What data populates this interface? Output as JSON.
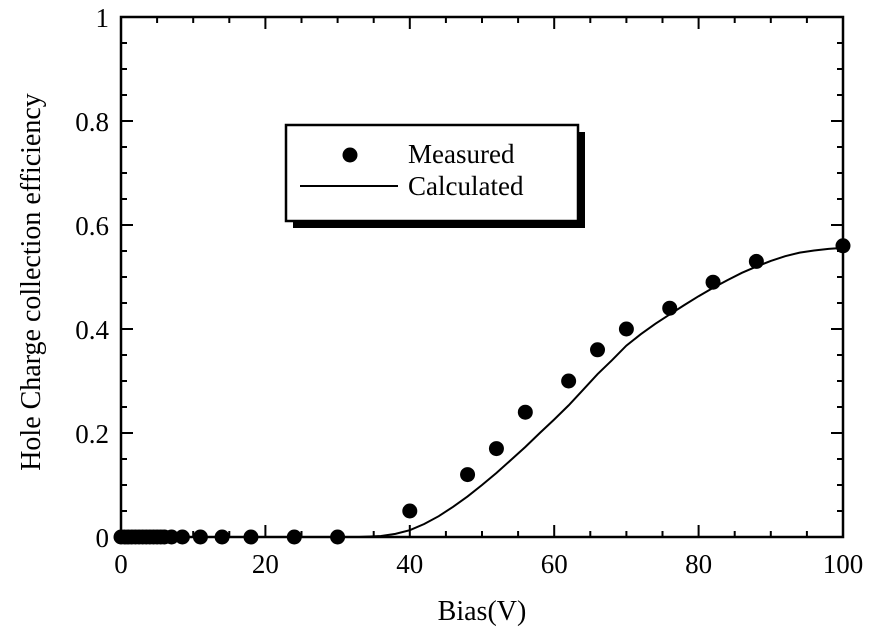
{
  "chart_data": {
    "type": "scatter",
    "xlabel": "Bias(V)",
    "ylabel": "Hole Charge collection efficiency",
    "xlim": [
      0,
      100
    ],
    "ylim": [
      0,
      1
    ],
    "x_ticks": [
      "0",
      "20",
      "40",
      "60",
      "80",
      "100"
    ],
    "y_ticks": [
      "0",
      "0.2",
      "0.4",
      "0.6",
      "0.8",
      "1"
    ],
    "x_tick_values": [
      0,
      20,
      40,
      60,
      80,
      100
    ],
    "y_tick_values": [
      0,
      0.2,
      0.4,
      0.6,
      0.8,
      1
    ],
    "legend_position": "upper-left",
    "grid": false,
    "series": [
      {
        "name": "Measured",
        "style": "markers",
        "x": [
          0,
          0.5,
          1,
          1.5,
          2,
          2.5,
          3,
          3.5,
          4,
          4.5,
          5,
          5.5,
          6,
          7,
          8.5,
          11,
          14,
          18,
          24,
          30,
          40,
          48,
          52,
          56,
          62,
          66,
          70,
          76,
          82,
          88,
          100
        ],
        "y": [
          0,
          0,
          0,
          0,
          0,
          0,
          0,
          0,
          0,
          0,
          0,
          0,
          0,
          0,
          0,
          0,
          0,
          0,
          0,
          0,
          0.05,
          0.12,
          0.17,
          0.24,
          0.3,
          0.36,
          0.4,
          0.44,
          0.49,
          0.53,
          0.56
        ]
      },
      {
        "name": "Calculated",
        "style": "line",
        "x": [
          0,
          10,
          20,
          30,
          33,
          36,
          38,
          40,
          42,
          44,
          46,
          48,
          50,
          52,
          54,
          56,
          58,
          60,
          62,
          64,
          66,
          68,
          70,
          72,
          74,
          76,
          78,
          80,
          82,
          84,
          86,
          88,
          90,
          92,
          94,
          96,
          98,
          100
        ],
        "y": [
          0,
          0,
          0,
          0,
          0.0,
          0.002,
          0.006,
          0.013,
          0.025,
          0.04,
          0.058,
          0.078,
          0.1,
          0.123,
          0.148,
          0.173,
          0.2,
          0.226,
          0.253,
          0.283,
          0.313,
          0.34,
          0.368,
          0.39,
          0.41,
          0.428,
          0.446,
          0.463,
          0.479,
          0.494,
          0.508,
          0.52,
          0.531,
          0.54,
          0.547,
          0.551,
          0.554,
          0.556
        ]
      }
    ]
  }
}
